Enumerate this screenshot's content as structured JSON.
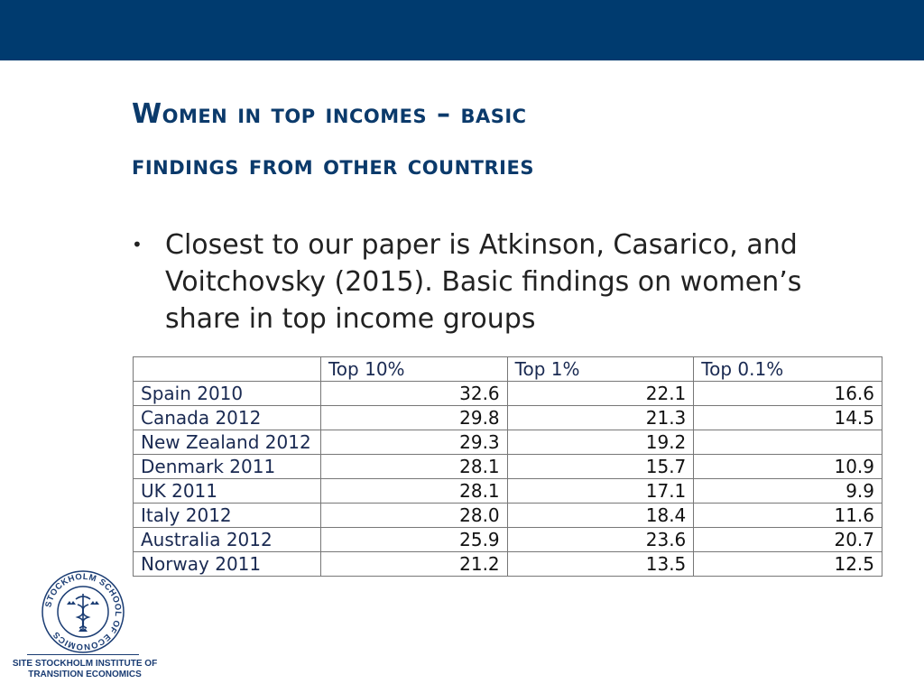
{
  "slide": {
    "title_line1": "Women in top incomes – basic",
    "title_line2": "findings from other countries",
    "bullet_marker": "•",
    "bullet_text": "Closest to our paper is Atkinson, Casarico, and Voitchovsky (2015). Basic findings on women’s share in top income groups"
  },
  "table": {
    "headers": [
      "",
      "Top 10%",
      "Top 1%",
      "Top 0.1%"
    ],
    "rows": [
      [
        "Spain 2010",
        "32.6",
        "22.1",
        "16.6"
      ],
      [
        "Canada 2012",
        "29.8",
        "21.3",
        "14.5"
      ],
      [
        "New Zealand 2012",
        "29.3",
        "19.2",
        ""
      ],
      [
        "Denmark 2011",
        "28.1",
        "15.7",
        "10.9"
      ],
      [
        "UK 2011",
        "28.1",
        "17.1",
        "9.9"
      ],
      [
        "Italy 2012",
        "28.0",
        "18.4",
        "11.6"
      ],
      [
        "Australia 2012",
        "25.9",
        "23.6",
        "20.7"
      ],
      [
        "Norway 2011",
        "21.2",
        "13.5",
        "12.5"
      ]
    ]
  },
  "logo": {
    "seal_text": "STOCKHOLM SCHOOL OF ECONOMICS",
    "line1": "SITE STOCKHOLM INSTITUTE OF",
    "line2": "TRANSITION ECONOMICS"
  },
  "colors": {
    "band": "#003b6f",
    "title": "#0b3a6b",
    "logo": "#1a3c73"
  }
}
